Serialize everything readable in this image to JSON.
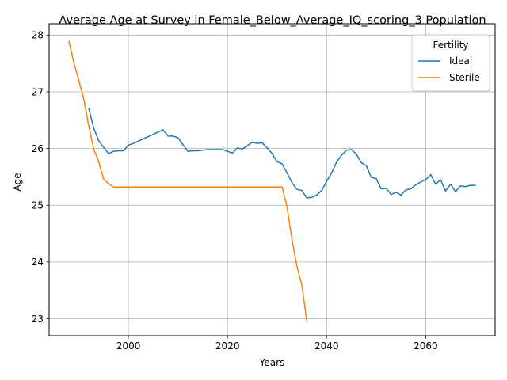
{
  "chart_data": {
    "type": "line",
    "title": "Average Age at Survey in Female_Below_Average_IQ_scoring_3 Population",
    "xlabel": "Years",
    "ylabel": "Age",
    "xlim": [
      1984,
      2074
    ],
    "ylim": [
      22.7,
      28.2
    ],
    "xticks": [
      2000,
      2020,
      2040,
      2060
    ],
    "yticks": [
      23,
      24,
      25,
      26,
      27,
      28
    ],
    "grid": true,
    "legend": {
      "title": "Fertility",
      "position": "upper right"
    },
    "series": [
      {
        "name": "Ideal",
        "color": "#1f77b4",
        "x": [
          1992,
          1993,
          1994,
          1995,
          1996,
          1997,
          1998,
          1999,
          2000,
          2001,
          2002,
          2003,
          2004,
          2005,
          2006,
          2007,
          2008,
          2009,
          2010,
          2011,
          2012,
          2013,
          2014,
          2015,
          2016,
          2017,
          2018,
          2019,
          2020,
          2021,
          2022,
          2023,
          2024,
          2025,
          2026,
          2027,
          2028,
          2029,
          2030,
          2031,
          2032,
          2033,
          2034,
          2035,
          2036,
          2037,
          2038,
          2039,
          2040,
          2041,
          2042,
          2043,
          2044,
          2045,
          2046,
          2047,
          2048,
          2049,
          2050,
          2051,
          2052,
          2053,
          2054,
          2055,
          2056,
          2057,
          2058,
          2059,
          2060,
          2061,
          2062,
          2063,
          2064,
          2065,
          2066,
          2067,
          2068,
          2069,
          2070
        ],
        "y": [
          26.71,
          26.36,
          26.14,
          26.02,
          25.91,
          25.95,
          25.96,
          25.96,
          26.06,
          26.09,
          26.13,
          26.17,
          26.21,
          26.25,
          26.29,
          26.33,
          26.22,
          26.22,
          26.19,
          26.07,
          25.95,
          25.96,
          25.96,
          25.97,
          25.98,
          25.98,
          25.98,
          25.98,
          25.95,
          25.92,
          26.01,
          25.99,
          26.05,
          26.11,
          26.09,
          26.1,
          26.01,
          25.91,
          25.77,
          25.73,
          25.57,
          25.4,
          25.28,
          25.26,
          25.13,
          25.14,
          25.18,
          25.26,
          25.42,
          25.57,
          25.76,
          25.88,
          25.97,
          25.98,
          25.9,
          25.75,
          25.7,
          25.49,
          25.47,
          25.29,
          25.3,
          25.19,
          25.23,
          25.18,
          25.27,
          25.29,
          25.36,
          25.41,
          25.45,
          25.54,
          25.37,
          25.45,
          25.25,
          25.37,
          25.24,
          25.34,
          25.33,
          25.35,
          25.35
        ]
      },
      {
        "name": "Sterile",
        "color": "#ff7f0e",
        "x": [
          1988,
          1989,
          1990,
          1991,
          1992,
          1993,
          1994,
          1995,
          1996,
          1997,
          1998,
          2000,
          2005,
          2010,
          2015,
          2020,
          2025,
          2030,
          2031,
          2032,
          2033,
          2034,
          2035,
          2036
        ],
        "y": [
          27.89,
          27.51,
          27.2,
          26.87,
          26.4,
          25.99,
          25.77,
          25.46,
          25.38,
          25.32,
          25.32,
          25.32,
          25.32,
          25.32,
          25.32,
          25.32,
          25.32,
          25.32,
          25.32,
          24.97,
          24.4,
          23.93,
          23.59,
          22.96
        ]
      }
    ]
  }
}
